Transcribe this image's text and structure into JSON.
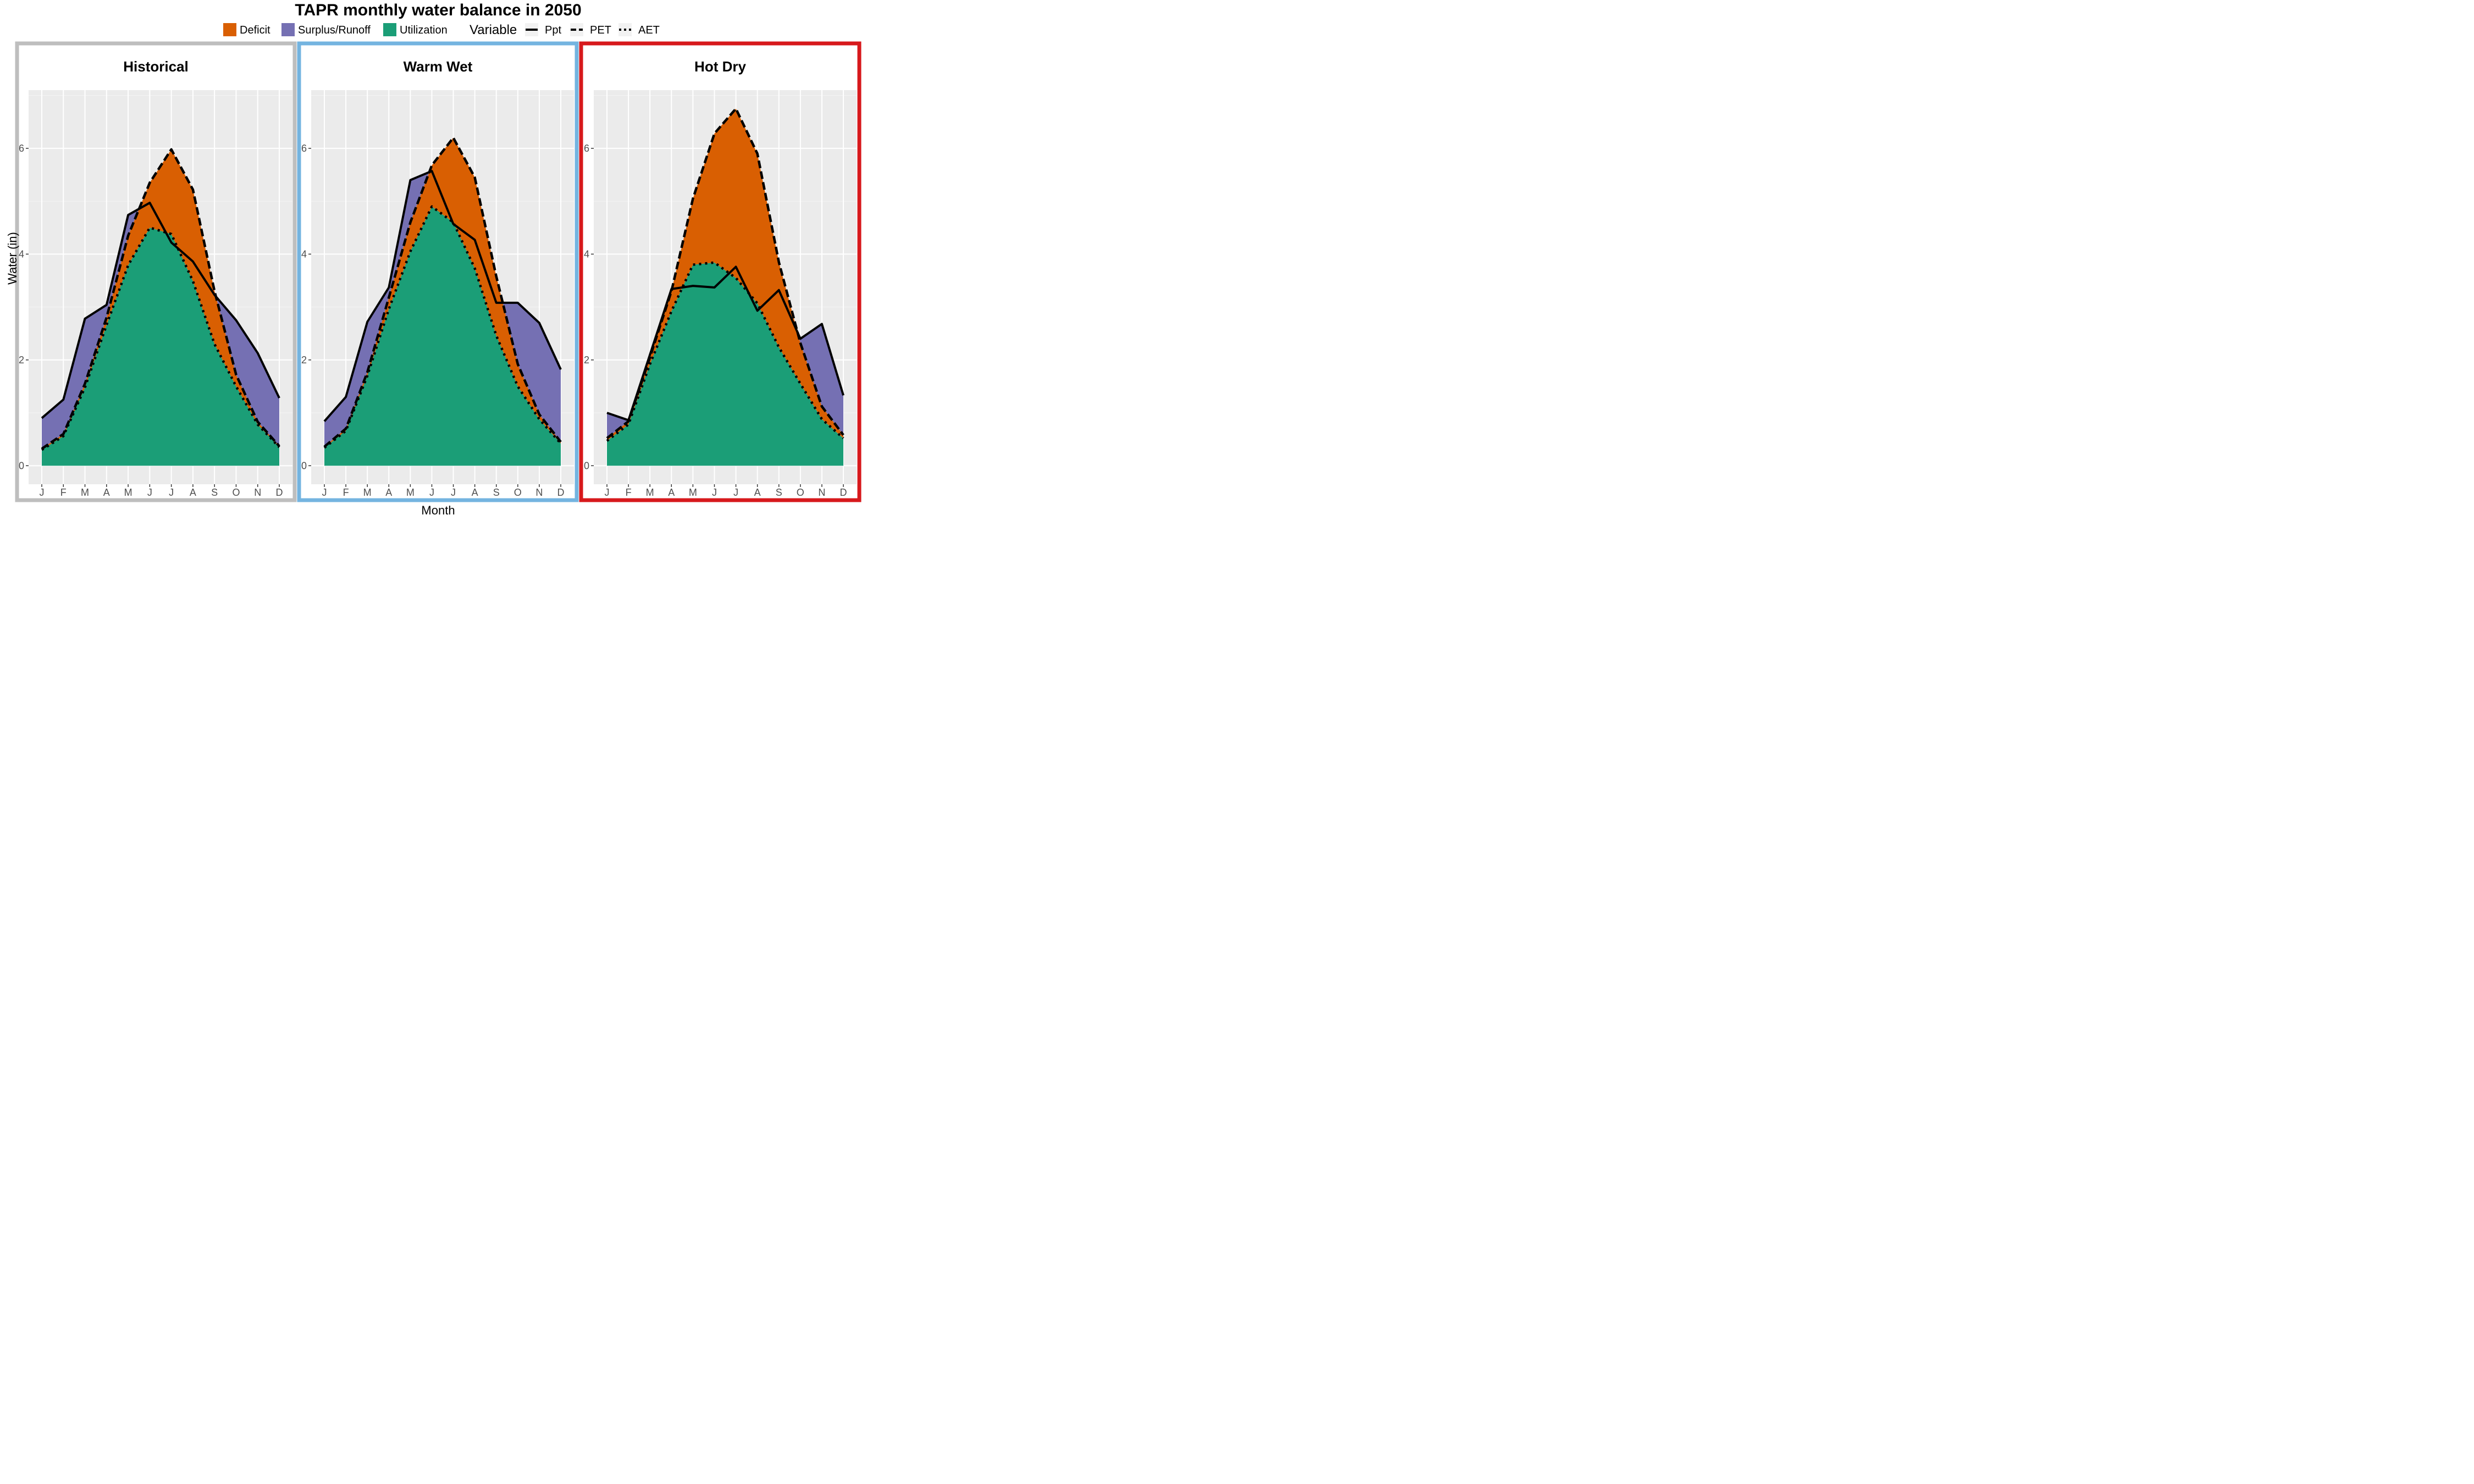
{
  "chart_data": {
    "type": "area",
    "title": "TAPR monthly water balance in 2050",
    "xlabel": "Month",
    "ylabel": "Water (in)",
    "ylim": [
      -0.35,
      7.1
    ],
    "yticks": [
      0,
      2,
      4,
      6
    ],
    "grid": true,
    "legend_placement": "top",
    "categories": [
      "J",
      "F",
      "M",
      "A",
      "M",
      "J",
      "J",
      "A",
      "S",
      "O",
      "N",
      "D"
    ],
    "fill_legend": [
      {
        "name": "Deficit",
        "color": "#D95F02"
      },
      {
        "name": "Surplus/Runoff",
        "color": "#7570B3"
      },
      {
        "name": "Utilization",
        "color": "#1B9E77"
      }
    ],
    "line_legend": {
      "title": "Variable",
      "items": [
        {
          "name": "Ppt",
          "style": "solid"
        },
        {
          "name": "PET",
          "style": "dashed"
        },
        {
          "name": "AET",
          "style": "dotted"
        }
      ]
    },
    "panels": [
      {
        "name": "Historical",
        "border_color": "#BEBEBE",
        "series": [
          {
            "name": "Ppt",
            "values": [
              0.9,
              1.25,
              2.78,
              3.04,
              4.74,
              4.97,
              4.22,
              3.86,
              3.23,
              2.75,
              2.13,
              1.28
            ]
          },
          {
            "name": "PET",
            "values": [
              0.32,
              0.6,
              1.55,
              2.8,
              4.35,
              5.35,
              5.98,
              5.22,
              3.3,
              1.72,
              0.83,
              0.37
            ]
          },
          {
            "name": "AET",
            "values": [
              0.3,
              0.56,
              1.48,
              2.66,
              3.79,
              4.5,
              4.38,
              3.49,
              2.3,
              1.5,
              0.78,
              0.35
            ]
          }
        ]
      },
      {
        "name": "Warm Wet",
        "border_color": "#74B4E0",
        "series": [
          {
            "name": "Ppt",
            "values": [
              0.84,
              1.3,
              2.72,
              3.37,
              5.4,
              5.57,
              4.57,
              4.27,
              3.08,
              3.08,
              2.7,
              1.82
            ]
          },
          {
            "name": "PET",
            "values": [
              0.36,
              0.7,
              1.77,
              3.18,
              4.6,
              5.68,
              6.2,
              5.45,
              3.58,
              1.92,
              0.97,
              0.45
            ]
          },
          {
            "name": "AET",
            "values": [
              0.34,
              0.66,
              1.7,
              2.96,
              4.05,
              4.9,
              4.6,
              3.73,
              2.46,
              1.5,
              0.88,
              0.42
            ]
          }
        ]
      },
      {
        "name": "Hot Dry",
        "border_color": "#D7191C",
        "series": [
          {
            "name": "Ppt",
            "values": [
              1.0,
              0.86,
              2.1,
              3.34,
              3.4,
              3.37,
              3.76,
              2.93,
              3.32,
              2.4,
              2.68,
              1.33
            ]
          },
          {
            "name": "PET",
            "values": [
              0.52,
              0.84,
              2.05,
              3.3,
              5.05,
              6.28,
              6.75,
              5.9,
              3.85,
              2.32,
              1.12,
              0.58
            ]
          },
          {
            "name": "AET",
            "values": [
              0.47,
              0.78,
              1.92,
              2.92,
              3.8,
              3.84,
              3.55,
              3.07,
              2.24,
              1.55,
              0.88,
              0.52
            ]
          }
        ]
      }
    ]
  },
  "colors": {
    "panel_background": "#EBEBEB",
    "grid": "#FFFFFF",
    "line": "#000000"
  }
}
